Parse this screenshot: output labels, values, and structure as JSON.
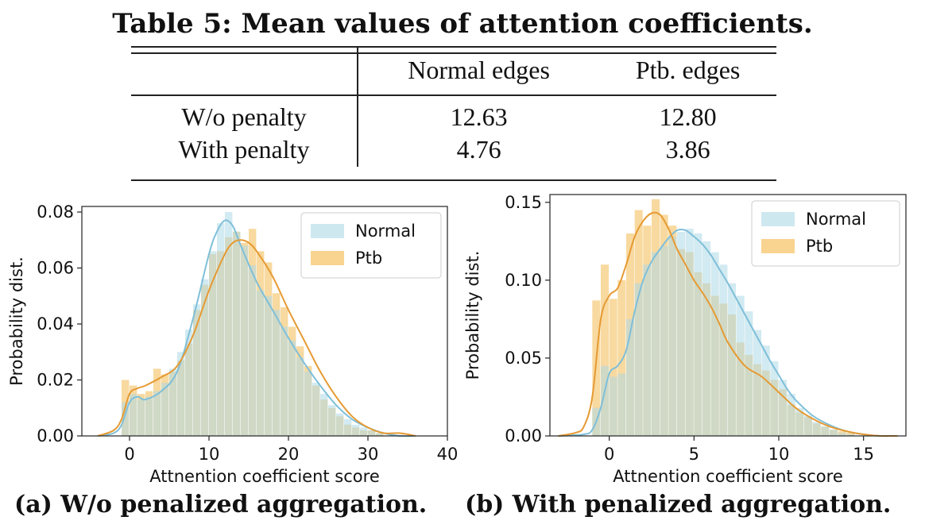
{
  "table": {
    "title": "Table 5: Mean values of attention coefficients.",
    "columns": [
      "",
      "Normal edges",
      "Ptb. edges"
    ],
    "rows": [
      {
        "label": "W/o penalty",
        "normal": "12.63",
        "ptb": "12.80"
      },
      {
        "label": "With penalty",
        "normal": "4.76",
        "ptb": "3.86"
      }
    ]
  },
  "colors": {
    "normal": "#add8e6",
    "normal_line": "#7fbfd9",
    "ptb": "#f5c56b",
    "ptb_line": "#e69a33"
  },
  "chart_data": [
    {
      "type": "histogram",
      "caption": "(a) W/o penalized aggregation.",
      "xlabel": "Attnention coefficient score",
      "ylabel": "Probability dist.",
      "xlim": [
        -6,
        40
      ],
      "ylim": [
        0,
        0.082
      ],
      "xticks": [
        0,
        10,
        20,
        30,
        40
      ],
      "yticks": [
        0.0,
        0.02,
        0.04,
        0.06,
        0.08
      ],
      "ytick_labels": [
        "0.00",
        "0.02",
        "0.04",
        "0.06",
        "0.08"
      ],
      "legend_position": "top-right",
      "bin_width": 1,
      "series": [
        {
          "name": "Normal",
          "x": [
            -0.5,
            0.5,
            1.5,
            2.5,
            3.5,
            4.5,
            5.5,
            6.5,
            7.5,
            8.5,
            9.5,
            10.5,
            11.5,
            12.5,
            13.5,
            14.5,
            15.5,
            16.5,
            17.5,
            18.5,
            19.5,
            20.5,
            21.5,
            22.5,
            23.5,
            24.5,
            25.5,
            26.5,
            27.5,
            28.5,
            29.5,
            30.5,
            31.5
          ],
          "values": [
            0.012,
            0.015,
            0.013,
            0.014,
            0.016,
            0.019,
            0.024,
            0.03,
            0.038,
            0.047,
            0.056,
            0.066,
            0.076,
            0.08,
            0.073,
            0.068,
            0.061,
            0.052,
            0.05,
            0.045,
            0.039,
            0.034,
            0.028,
            0.023,
            0.019,
            0.015,
            0.011,
            0.008,
            0.006,
            0.004,
            0.003,
            0.002,
            0.001
          ]
        },
        {
          "name": "Ptb",
          "x": [
            -0.5,
            0.5,
            1.5,
            2.5,
            3.5,
            4.5,
            5.5,
            6.5,
            7.5,
            8.5,
            9.5,
            10.5,
            11.5,
            12.5,
            13.5,
            14.5,
            15.5,
            16.5,
            17.5,
            18.5,
            19.5,
            20.5,
            21.5,
            22.5,
            23.5,
            24.5,
            25.5,
            26.5,
            27.5,
            28.5,
            29.5,
            30.5,
            31.5
          ],
          "values": [
            0.02,
            0.018,
            0.015,
            0.016,
            0.024,
            0.022,
            0.023,
            0.027,
            0.033,
            0.045,
            0.054,
            0.065,
            0.066,
            0.071,
            0.073,
            0.069,
            0.074,
            0.066,
            0.062,
            0.051,
            0.046,
            0.039,
            0.032,
            0.025,
            0.018,
            0.013,
            0.01,
            0.007,
            0.004,
            0.003,
            0.002,
            0.002,
            0.001
          ]
        }
      ],
      "kde": [
        {
          "name": "Normal",
          "x": [
            -4,
            -2,
            -1,
            0,
            1,
            2,
            4,
            6,
            8,
            10,
            11,
            12,
            13,
            14,
            16,
            18,
            20,
            22,
            24,
            26,
            28,
            30,
            32,
            34,
            36
          ],
          "values": [
            0,
            0.001,
            0.004,
            0.012,
            0.014,
            0.013,
            0.016,
            0.023,
            0.042,
            0.065,
            0.073,
            0.077,
            0.075,
            0.068,
            0.055,
            0.045,
            0.035,
            0.026,
            0.018,
            0.011,
            0.006,
            0.003,
            0.001,
            0.0,
            0.0
          ]
        },
        {
          "name": "Ptb",
          "x": [
            -4,
            -2,
            -1,
            0,
            1,
            2,
            4,
            6,
            8,
            10,
            12,
            13,
            14,
            15,
            16,
            18,
            20,
            22,
            24,
            26,
            28,
            30,
            32,
            34,
            36
          ],
          "values": [
            0,
            0.002,
            0.006,
            0.015,
            0.017,
            0.018,
            0.021,
            0.025,
            0.036,
            0.052,
            0.065,
            0.069,
            0.07,
            0.069,
            0.066,
            0.057,
            0.045,
            0.034,
            0.023,
            0.014,
            0.007,
            0.003,
            0.001,
            0.001,
            0.0
          ]
        }
      ]
    },
    {
      "type": "histogram",
      "caption": "(b) With penalized aggregation.",
      "xlabel": "Attnention coefficient score",
      "ylabel": "Probability dist.",
      "xlim": [
        -3.5,
        17.5
      ],
      "ylim": [
        0,
        0.155
      ],
      "xticks": [
        0,
        5,
        10,
        15
      ],
      "yticks": [
        0.0,
        0.05,
        0.1,
        0.15
      ],
      "ytick_labels": [
        "0.00",
        "0.05",
        "0.10",
        "0.15"
      ],
      "legend_position": "top-right",
      "bin_width": 0.5,
      "series": [
        {
          "name": "Normal",
          "x": [
            -0.75,
            -0.25,
            0.25,
            0.75,
            1.25,
            1.75,
            2.25,
            2.75,
            3.25,
            3.75,
            4.25,
            4.75,
            5.25,
            5.75,
            6.25,
            6.75,
            7.25,
            7.75,
            8.25,
            8.75,
            9.25,
            9.75,
            10.25,
            10.75,
            11.25,
            11.75,
            12.25,
            12.75,
            13.25,
            13.75,
            14.25
          ],
          "values": [
            0.018,
            0.045,
            0.038,
            0.04,
            0.075,
            0.098,
            0.11,
            0.118,
            0.122,
            0.128,
            0.131,
            0.133,
            0.13,
            0.125,
            0.118,
            0.11,
            0.098,
            0.09,
            0.08,
            0.068,
            0.058,
            0.048,
            0.036,
            0.027,
            0.018,
            0.013,
            0.009,
            0.006,
            0.004,
            0.002,
            0.001
          ]
        },
        {
          "name": "Ptb",
          "x": [
            -0.75,
            -0.25,
            0.25,
            0.75,
            1.25,
            1.75,
            2.25,
            2.75,
            3.25,
            3.75,
            4.25,
            4.75,
            5.25,
            5.75,
            6.25,
            6.75,
            7.25,
            7.75,
            8.25,
            8.75,
            9.25,
            9.75,
            10.25,
            10.75,
            11.25,
            11.75,
            12.25,
            12.75,
            13.25,
            13.75,
            14.25
          ],
          "values": [
            0.087,
            0.11,
            0.088,
            0.1,
            0.13,
            0.145,
            0.135,
            0.152,
            0.142,
            0.135,
            0.12,
            0.118,
            0.105,
            0.098,
            0.09,
            0.085,
            0.078,
            0.06,
            0.052,
            0.046,
            0.042,
            0.036,
            0.03,
            0.02,
            0.015,
            0.012,
            0.008,
            0.006,
            0.004,
            0.003,
            0.002
          ]
        }
      ],
      "kde": [
        {
          "name": "Normal",
          "x": [
            -3,
            -1.5,
            -1,
            -0.5,
            0,
            0.5,
            1,
            1.5,
            2,
            2.5,
            3,
            3.5,
            4,
            4.5,
            5,
            5.5,
            6,
            6.5,
            7,
            7.5,
            8,
            8.5,
            9,
            9.5,
            10,
            10.5,
            11,
            12,
            13,
            14,
            15,
            16,
            17
          ],
          "values": [
            0,
            0.001,
            0.004,
            0.018,
            0.04,
            0.045,
            0.055,
            0.08,
            0.1,
            0.112,
            0.12,
            0.127,
            0.132,
            0.132,
            0.128,
            0.123,
            0.116,
            0.107,
            0.098,
            0.088,
            0.078,
            0.068,
            0.058,
            0.048,
            0.039,
            0.03,
            0.023,
            0.013,
            0.007,
            0.003,
            0.001,
            0.0,
            0.0
          ]
        },
        {
          "name": "Ptb",
          "x": [
            -3,
            -2,
            -1.5,
            -1,
            -0.5,
            0,
            0.5,
            1,
            1.5,
            2,
            2.5,
            3,
            3.5,
            4,
            4.5,
            5,
            5.5,
            6,
            6.5,
            7,
            8,
            9,
            10,
            11,
            12,
            13,
            14,
            15,
            16,
            17
          ],
          "values": [
            0,
            0.002,
            0.006,
            0.025,
            0.075,
            0.09,
            0.095,
            0.11,
            0.128,
            0.138,
            0.143,
            0.142,
            0.133,
            0.12,
            0.11,
            0.1,
            0.092,
            0.083,
            0.072,
            0.06,
            0.045,
            0.038,
            0.028,
            0.018,
            0.011,
            0.006,
            0.003,
            0.001,
            0.0,
            0.0
          ]
        }
      ]
    }
  ]
}
